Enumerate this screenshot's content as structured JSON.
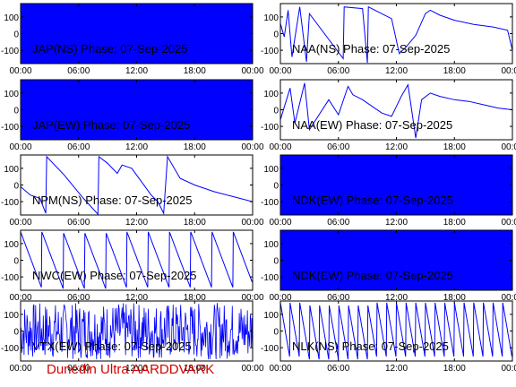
{
  "footer_text": "Dunedin Ultra AARDDVARK",
  "colors": {
    "trace": "#0000ff",
    "axes": "#000000",
    "footer": "#d40000"
  },
  "chart_data": [
    {
      "type": "line",
      "title": "JAP(NS) Phase: 07-Sep-2025",
      "x_ticks": [
        "00:00",
        "06:00",
        "12:00",
        "18:00",
        "00:00"
      ],
      "y_ticks": [
        "100",
        "0",
        "-100"
      ],
      "ylim": [
        -180,
        180
      ],
      "xlim_hours": [
        0,
        24
      ],
      "trace_style": "dense"
    },
    {
      "type": "line",
      "title": "NAA(NS) Phase: 07-Sep-2025",
      "x_ticks": [
        "00:00",
        "06:00",
        "12:00",
        "18:00",
        "00:00"
      ],
      "y_ticks": [
        "100",
        "0",
        "-100"
      ],
      "ylim": [
        -180,
        180
      ],
      "xlim_hours": [
        0,
        24
      ],
      "trace_style": "drift",
      "series": [
        {
          "points": [
            [
              0,
              60
            ],
            [
              0.4,
              -20
            ],
            [
              0.8,
              140
            ],
            [
              1.2,
              -140
            ],
            [
              2.0,
              160
            ],
            [
              2.7,
              -170
            ],
            [
              3.0,
              120
            ],
            [
              6.5,
              -150
            ],
            [
              6.6,
              160
            ],
            [
              8.5,
              150
            ],
            [
              9.0,
              -175
            ],
            [
              9.1,
              160
            ],
            [
              11.5,
              90
            ],
            [
              12.3,
              -120
            ],
            [
              13.0,
              -80
            ],
            [
              14.0,
              -10
            ],
            [
              15.0,
              120
            ],
            [
              15.5,
              140
            ],
            [
              16.5,
              110
            ],
            [
              18.0,
              80
            ],
            [
              20.0,
              55
            ],
            [
              22.0,
              40
            ],
            [
              23.5,
              20
            ],
            [
              24,
              -100
            ]
          ]
        }
      ]
    },
    {
      "type": "line",
      "title": "JAP(EW) Phase: 07-Sep-2025",
      "x_ticks": [
        "00:00",
        "06:00",
        "12:00",
        "18:00",
        "00:00"
      ],
      "y_ticks": [
        "100",
        "0",
        "-100"
      ],
      "ylim": [
        -180,
        180
      ],
      "xlim_hours": [
        0,
        24
      ],
      "trace_style": "dense"
    },
    {
      "type": "line",
      "title": "NAA(EW) Phase: 07-Sep-2025",
      "x_ticks": [
        "00:00",
        "06:00",
        "12:00",
        "18:00",
        "00:00"
      ],
      "y_ticks": [
        "100",
        "0",
        "-100"
      ],
      "ylim": [
        -180,
        180
      ],
      "xlim_hours": [
        0,
        24
      ],
      "trace_style": "drift",
      "series": [
        {
          "points": [
            [
              0,
              -60
            ],
            [
              1.0,
              130
            ],
            [
              1.5,
              -80
            ],
            [
              2.5,
              160
            ],
            [
              3.0,
              -120
            ],
            [
              5.0,
              60
            ],
            [
              6.0,
              -30
            ],
            [
              7.0,
              140
            ],
            [
              7.5,
              90
            ],
            [
              8.5,
              60
            ],
            [
              9.5,
              20
            ],
            [
              10.5,
              -20
            ],
            [
              11.5,
              -40
            ],
            [
              12.0,
              20
            ],
            [
              12.5,
              80
            ],
            [
              13.2,
              150
            ],
            [
              14.0,
              -170
            ],
            [
              14.6,
              60
            ],
            [
              15.5,
              100
            ],
            [
              16.5,
              80
            ],
            [
              18.0,
              60
            ],
            [
              19.5,
              50
            ],
            [
              21.0,
              30
            ],
            [
              22.5,
              10
            ],
            [
              24,
              0
            ]
          ]
        }
      ]
    },
    {
      "type": "line",
      "title": "NPM(NS) Phase: 07-Sep-2025",
      "x_ticks": [
        "00:00",
        "06:00",
        "12:00",
        "18:00",
        "00:00"
      ],
      "y_ticks": [
        "100",
        "0",
        "-100"
      ],
      "ylim": [
        -180,
        180
      ],
      "xlim_hours": [
        0,
        24
      ],
      "trace_style": "drift",
      "series": [
        {
          "points": [
            [
              0,
              -10
            ],
            [
              1.0,
              -60
            ],
            [
              2.0,
              -80
            ],
            [
              2.6,
              -170
            ],
            [
              2.7,
              170
            ],
            [
              4.5,
              60
            ],
            [
              6.5,
              -80
            ],
            [
              8.0,
              -175
            ],
            [
              8.1,
              170
            ],
            [
              9.0,
              130
            ],
            [
              10.0,
              70
            ],
            [
              10.5,
              120
            ],
            [
              11.5,
              100
            ],
            [
              12.5,
              20
            ],
            [
              13.5,
              -60
            ],
            [
              14.2,
              -100
            ],
            [
              14.8,
              -170
            ],
            [
              15.2,
              170
            ],
            [
              16.5,
              40
            ],
            [
              18.0,
              0
            ],
            [
              20.0,
              -40
            ],
            [
              22.0,
              -70
            ],
            [
              24,
              -100
            ]
          ]
        }
      ]
    },
    {
      "type": "line",
      "title": "NDK(EW) Phase: 07-Sep-2025",
      "x_ticks": [
        "00:00",
        "06:00",
        "12:00",
        "18:00",
        "00:00"
      ],
      "y_ticks": [
        "100",
        "0",
        "-100"
      ],
      "ylim": [
        -180,
        180
      ],
      "xlim_hours": [
        0,
        24
      ],
      "trace_style": "dense"
    },
    {
      "type": "line",
      "title": "NWC(EW) Phase: 07-Sep-2025",
      "x_ticks": [
        "00:00",
        "06:00",
        "12:00",
        "18:00",
        "00:00"
      ],
      "y_ticks": [
        "100",
        "0",
        "-100"
      ],
      "ylim": [
        -180,
        180
      ],
      "xlim_hours": [
        0,
        24
      ],
      "trace_style": "sawtooth",
      "period_hours": 2.2,
      "direction": "down"
    },
    {
      "type": "line",
      "title": "NDK(EW) Phase: 07-Sep-2025",
      "x_ticks": [
        "00:00",
        "06:00",
        "12:00",
        "18:00",
        "00:00"
      ],
      "y_ticks": [
        "100",
        "0",
        "-100"
      ],
      "ylim": [
        -180,
        180
      ],
      "xlim_hours": [
        0,
        24
      ],
      "trace_style": "dense"
    },
    {
      "type": "line",
      "title": "VTX(EW) Phase: 07-Sep-2025",
      "x_ticks": [
        "00:00",
        "06:00",
        "12:00",
        "18:00",
        "00:00"
      ],
      "y_ticks": [
        "100",
        "0",
        "-100"
      ],
      "ylim": [
        -180,
        180
      ],
      "xlim_hours": [
        0,
        24
      ],
      "trace_style": "noise"
    },
    {
      "type": "line",
      "title": "NLK(NS) Phase: 07-Sep-2025",
      "x_ticks": [
        "00:00",
        "06:00",
        "12:00",
        "18:00",
        "00:00"
      ],
      "y_ticks": [
        "100",
        "0",
        "-100"
      ],
      "ylim": [
        -180,
        180
      ],
      "xlim_hours": [
        0,
        24
      ],
      "trace_style": "sawtooth",
      "period_hours": 1.0,
      "direction": "down"
    }
  ]
}
